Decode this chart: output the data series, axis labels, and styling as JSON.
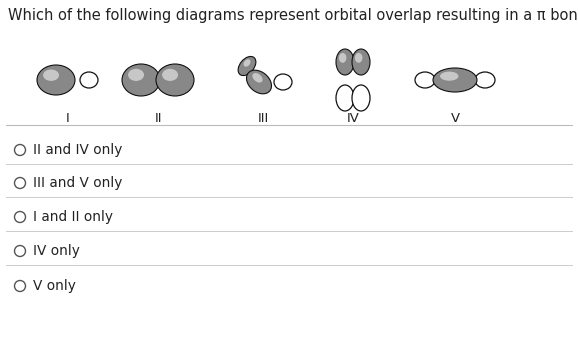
{
  "title": "Which of the following diagrams represent orbital overlap resulting in a π bond?",
  "title_fontsize": 10.5,
  "options": [
    "II and IV only",
    "III and V only",
    "I and II only",
    "IV only",
    "V only"
  ],
  "roman_labels": [
    "I",
    "II",
    "III",
    "IV",
    "V"
  ],
  "bg_color": "#ffffff",
  "text_color": "#222222",
  "fig_width": 5.78,
  "fig_height": 3.45,
  "dpi": 100
}
